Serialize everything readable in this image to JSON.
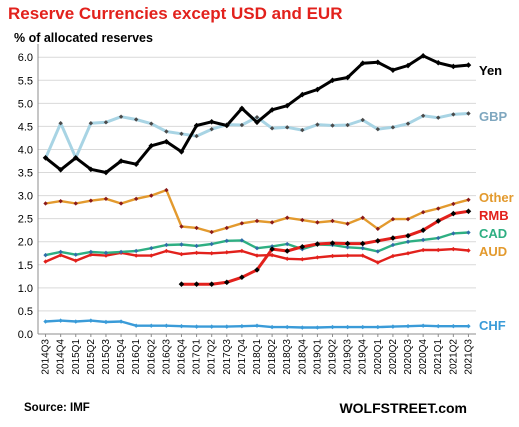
{
  "header": {
    "title": "Reserve Currencies except USD and EUR",
    "subtitle": "% of allocated reserves"
  },
  "footer": {
    "source": "Source: IMF",
    "brand": "WOLFSTREET.com"
  },
  "chart_data": {
    "type": "line",
    "title": "Reserve Currencies except USD and EUR",
    "ylabel": "% of allocated reserves",
    "ylim": [
      0,
      6.2
    ],
    "yticks": [
      "0.0",
      "0.5",
      "1.0",
      "1.5",
      "2.0",
      "2.5",
      "3.0",
      "3.5",
      "4.0",
      "4.5",
      "5.0",
      "5.5",
      "6.0"
    ],
    "grid": true,
    "categories": [
      "2014Q3",
      "2014Q4",
      "2015Q1",
      "2015Q2",
      "2015Q3",
      "2015Q4",
      "2016Q1",
      "2016Q2",
      "2016Q3",
      "2016Q4",
      "2017Q1",
      "2017Q2",
      "2017Q3",
      "2017Q4",
      "2018Q1",
      "2018Q2",
      "2018Q3",
      "2018Q4",
      "2019Q1",
      "2019Q2",
      "2019Q3",
      "2019Q4",
      "2020Q1",
      "2020Q2",
      "2020Q3",
      "2020Q4",
      "2021Q1",
      "2021Q2",
      "2021Q3"
    ],
    "series": [
      {
        "name": "Yen",
        "color": "#000000",
        "marker": "#000000",
        "values": [
          3.82,
          3.56,
          3.82,
          3.57,
          3.5,
          3.75,
          3.68,
          4.08,
          4.17,
          3.95,
          4.52,
          4.6,
          4.52,
          4.89,
          4.59,
          4.86,
          4.95,
          5.19,
          5.3,
          5.5,
          5.56,
          5.87,
          5.89,
          5.72,
          5.82,
          6.03,
          5.88,
          5.8,
          5.83
        ]
      },
      {
        "name": "GBP",
        "color": "#a8d4e4",
        "marker": "#4a4a4a",
        "values": [
          3.81,
          4.57,
          3.82,
          4.57,
          4.59,
          4.71,
          4.65,
          4.56,
          4.39,
          4.34,
          4.29,
          4.44,
          4.54,
          4.53,
          4.7,
          4.46,
          4.48,
          4.42,
          4.54,
          4.52,
          4.53,
          4.64,
          4.44,
          4.48,
          4.56,
          4.73,
          4.69,
          4.76,
          4.78
        ]
      },
      {
        "name": "Other",
        "color": "#e39a2e",
        "marker": "#8b1a1a",
        "values": [
          2.83,
          2.88,
          2.83,
          2.89,
          2.93,
          2.83,
          2.93,
          3.0,
          3.12,
          2.33,
          2.3,
          2.21,
          2.3,
          2.4,
          2.45,
          2.42,
          2.52,
          2.47,
          2.42,
          2.45,
          2.39,
          2.52,
          2.28,
          2.49,
          2.49,
          2.64,
          2.72,
          2.82,
          2.91
        ]
      },
      {
        "name": "RMB",
        "color": "#e2211c",
        "marker": "#000000",
        "values": [
          null,
          null,
          null,
          null,
          null,
          null,
          null,
          null,
          null,
          1.08,
          1.08,
          1.08,
          1.12,
          1.23,
          1.39,
          1.84,
          1.8,
          1.89,
          1.95,
          1.97,
          1.96,
          1.96,
          2.02,
          2.08,
          2.13,
          2.25,
          2.45,
          2.61,
          2.66
        ]
      },
      {
        "name": "CAD",
        "color": "#2eaf82",
        "marker": "#2f6ea8",
        "values": [
          1.71,
          1.78,
          1.72,
          1.78,
          1.76,
          1.78,
          1.8,
          1.86,
          1.93,
          1.94,
          1.91,
          1.95,
          2.02,
          2.03,
          1.86,
          1.9,
          1.95,
          1.84,
          1.94,
          1.93,
          1.88,
          1.86,
          1.79,
          1.93,
          2.0,
          2.04,
          2.08,
          2.18,
          2.2
        ]
      },
      {
        "name": "AUD",
        "color": "#e2211c",
        "marker": "#e2211c",
        "values": [
          1.57,
          1.71,
          1.59,
          1.72,
          1.7,
          1.76,
          1.7,
          1.7,
          1.8,
          1.73,
          1.76,
          1.75,
          1.77,
          1.8,
          1.7,
          1.71,
          1.63,
          1.62,
          1.66,
          1.69,
          1.7,
          1.7,
          1.55,
          1.69,
          1.75,
          1.82,
          1.82,
          1.84,
          1.81
        ]
      },
      {
        "name": "CHF",
        "color": "#3a9bd8",
        "marker": "#3a9bd8",
        "values": [
          0.27,
          0.29,
          0.27,
          0.29,
          0.26,
          0.27,
          0.18,
          0.18,
          0.18,
          0.17,
          0.16,
          0.16,
          0.16,
          0.17,
          0.18,
          0.15,
          0.15,
          0.14,
          0.14,
          0.15,
          0.15,
          0.15,
          0.15,
          0.16,
          0.17,
          0.18,
          0.17,
          0.17,
          0.17
        ]
      }
    ]
  }
}
